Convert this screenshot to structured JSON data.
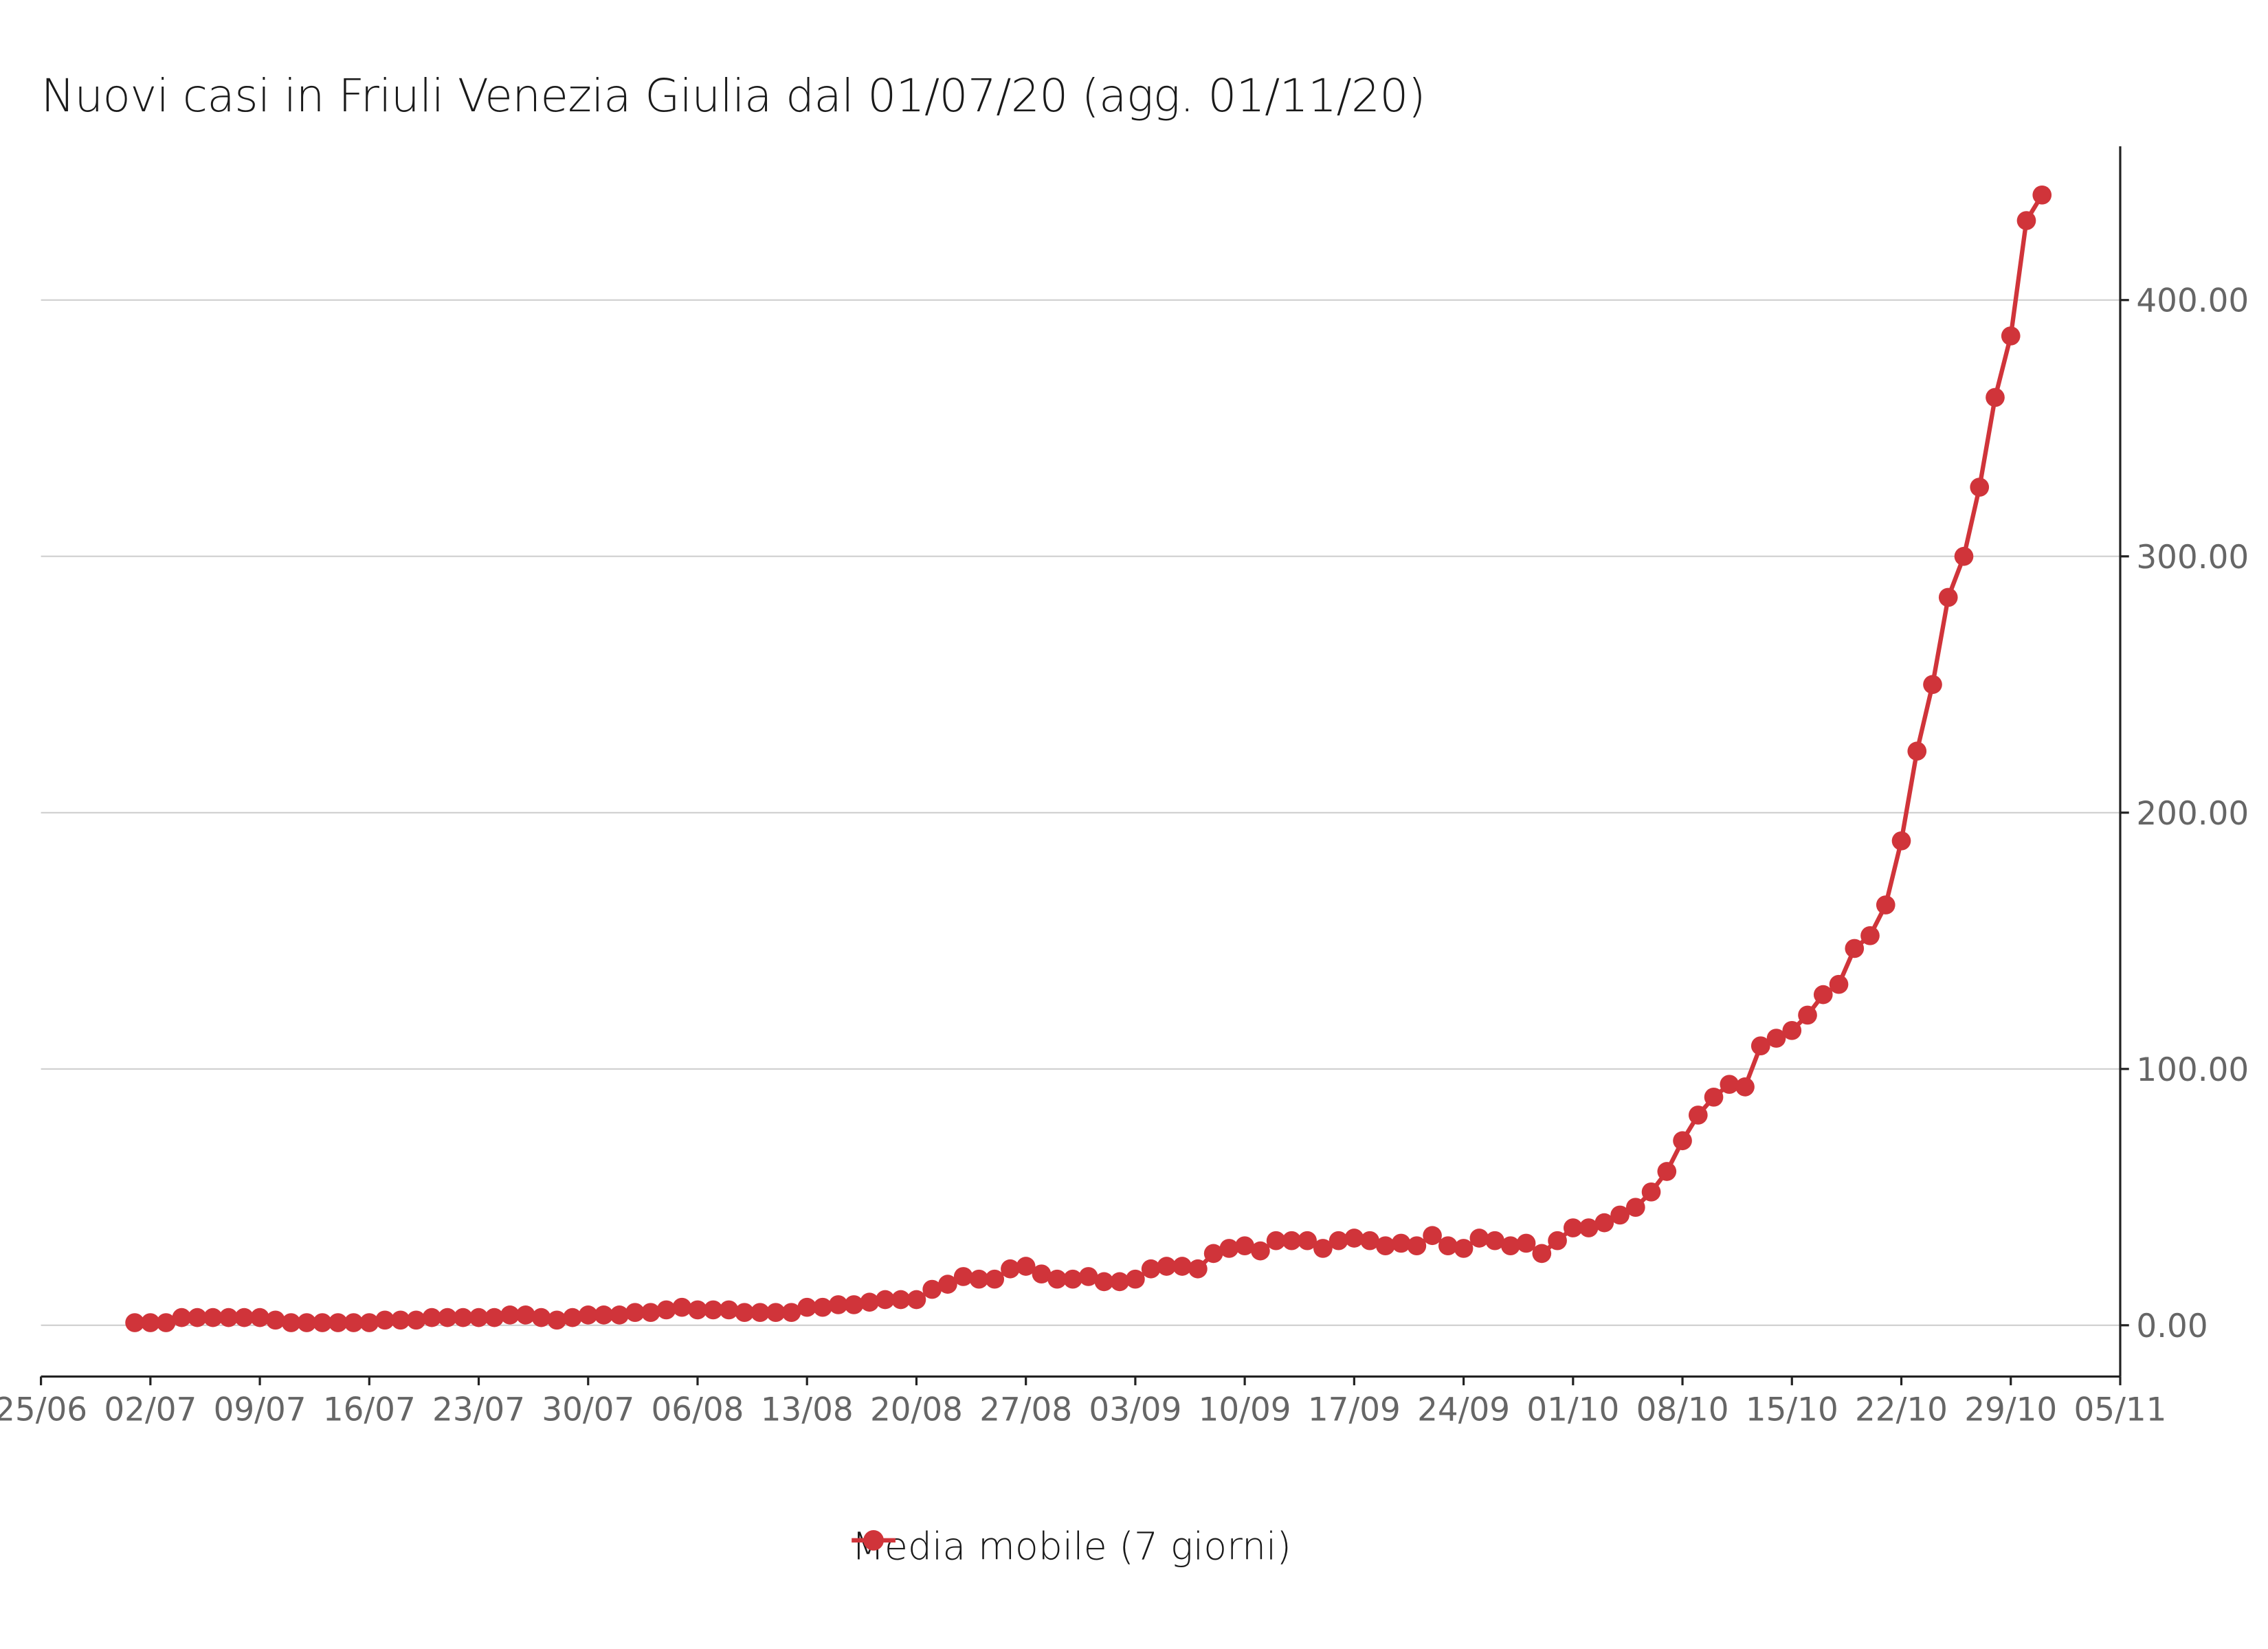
{
  "chart_data": {
    "type": "line",
    "title": "Nuovi casi in Friuli Venezia Giulia dal 01/07/20 (agg. 01/11/20)",
    "xlabel": "",
    "ylabel": "",
    "x_start": "2020-07-01",
    "x_ticks": [
      "25/06",
      "02/07",
      "09/07",
      "16/07",
      "23/07",
      "30/07",
      "06/08",
      "13/08",
      "20/08",
      "27/08",
      "03/09",
      "10/09",
      "17/09",
      "24/09",
      "01/10",
      "08/10",
      "15/10",
      "22/10",
      "29/10",
      "05/11"
    ],
    "y_ticks": [
      "0.00",
      "100.00",
      "200.00",
      "300.00",
      "400.00"
    ],
    "xlim": [
      "2020-06-25",
      "2020-11-05"
    ],
    "ylim": [
      -20,
      460
    ],
    "grid": "horizontal",
    "y_axis_side": "right",
    "legend_position": "bottom",
    "color": "#d0343a",
    "series": [
      {
        "name": "Media mobile (7 giorni)",
        "values": [
          1,
          1,
          1,
          3,
          3,
          3,
          3,
          3,
          3,
          2,
          1,
          1,
          1,
          1,
          1,
          1,
          2,
          2,
          2,
          3,
          3,
          3,
          3,
          3,
          4,
          4,
          3,
          2,
          3,
          4,
          4,
          4,
          5,
          5,
          6,
          7,
          6,
          6,
          6,
          5,
          5,
          5,
          5,
          7,
          7,
          8,
          8,
          9,
          10,
          10,
          10,
          14,
          16,
          19,
          18,
          18,
          22,
          23,
          20,
          18,
          18,
          19,
          17,
          17,
          18,
          22,
          23,
          23,
          22,
          28,
          30,
          31,
          29,
          33,
          33,
          33,
          30,
          33,
          34,
          33,
          31,
          32,
          31,
          35,
          31,
          30,
          34,
          33,
          31,
          32,
          28,
          33,
          38,
          38,
          40,
          43,
          46,
          52,
          60,
          72,
          82,
          89,
          94,
          93,
          109,
          112,
          115,
          121,
          129,
          133,
          147,
          152,
          164,
          189,
          224,
          250,
          284,
          300,
          327,
          362,
          386,
          431,
          441
        ]
      }
    ]
  }
}
